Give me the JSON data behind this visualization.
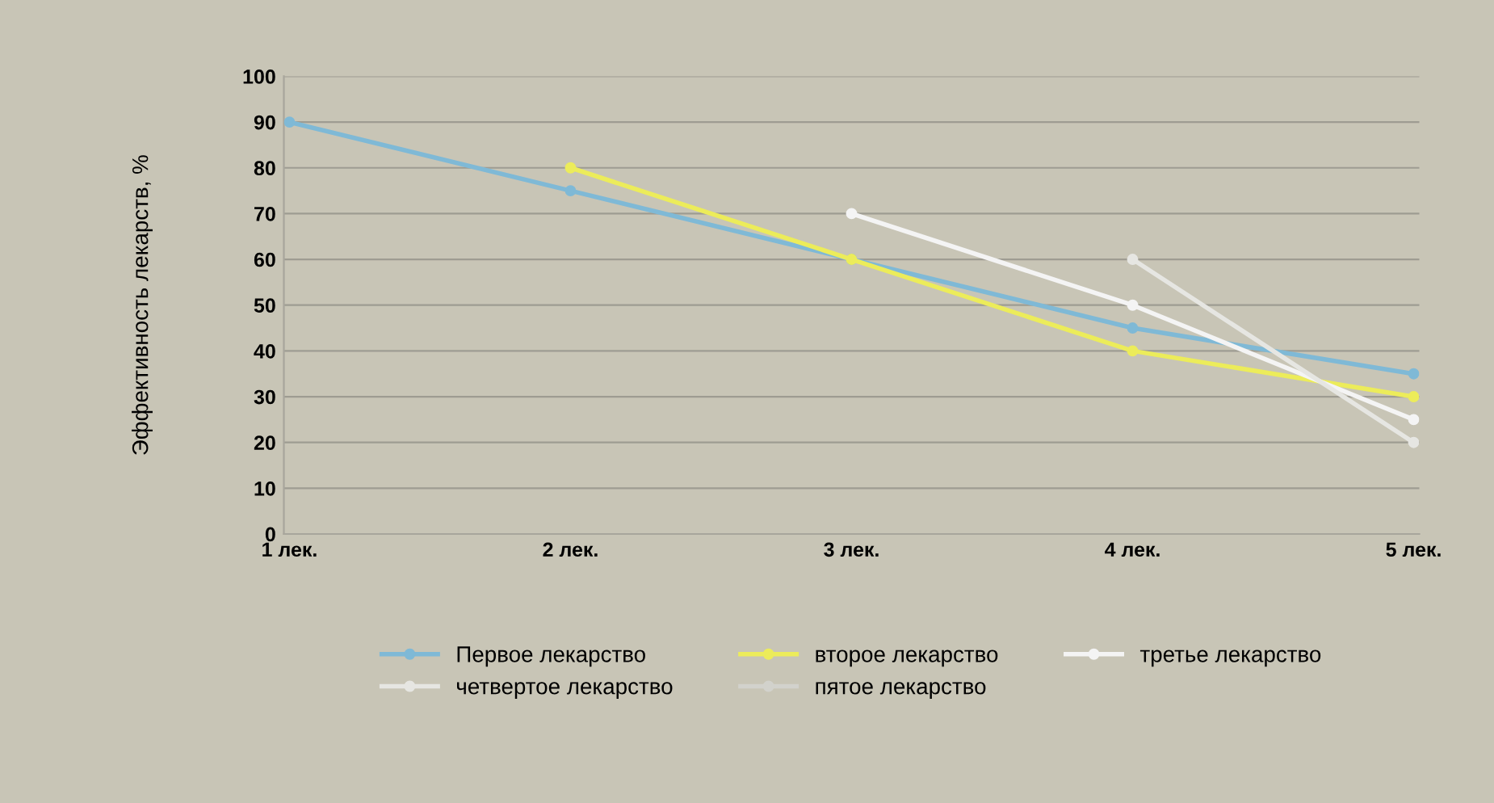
{
  "chart_data": {
    "type": "line",
    "ylabel": "Эффективность лекарств, %",
    "categories": [
      "1 лек.",
      "2 лек.",
      "3 лек.",
      "4 лек.",
      "5 лек."
    ],
    "series": [
      {
        "name": "Первое лекарство",
        "color": "#7fb9d6",
        "values": [
          90,
          75,
          60,
          45,
          35
        ]
      },
      {
        "name": "второе лекарство",
        "color": "#ecec5a",
        "values": [
          null,
          80,
          60,
          40,
          30
        ]
      },
      {
        "name": "третье лекарство",
        "color": "#f4f4f4",
        "values": [
          null,
          null,
          70,
          50,
          25
        ]
      },
      {
        "name": "четвертое лекарство",
        "color": "#e6e6e2",
        "values": [
          null,
          null,
          null,
          60,
          20
        ]
      },
      {
        "name": "пятое лекарство",
        "color": "#d2d2cc",
        "values": [
          null,
          null,
          null,
          null,
          null
        ]
      }
    ],
    "ylim": [
      0,
      100
    ],
    "yticks": [
      0,
      10,
      20,
      30,
      40,
      50,
      60,
      70,
      80,
      90,
      100
    ],
    "grid": "y",
    "legend": "bottom",
    "marker": "circle",
    "line_style": "solid"
  }
}
